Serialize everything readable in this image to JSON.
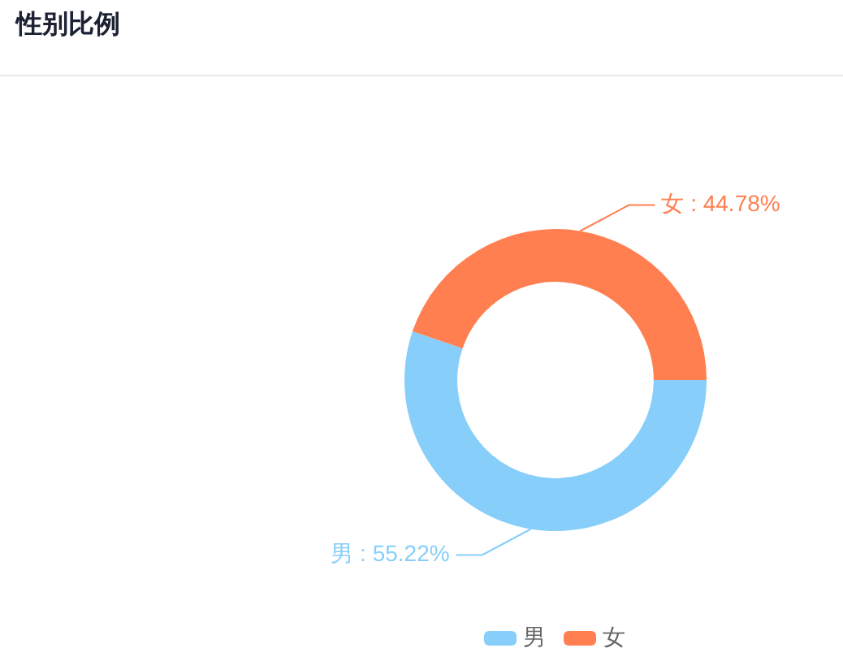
{
  "chart_data": {
    "type": "donut",
    "title": "性别比例",
    "categories": [
      "男",
      "女"
    ],
    "values": [
      55.22,
      44.78
    ],
    "colors": [
      "#87cefa",
      "#ff7f50"
    ],
    "value_labels": [
      "男 : 55.22%",
      "女 : 44.78%"
    ],
    "legend": "bottom"
  }
}
